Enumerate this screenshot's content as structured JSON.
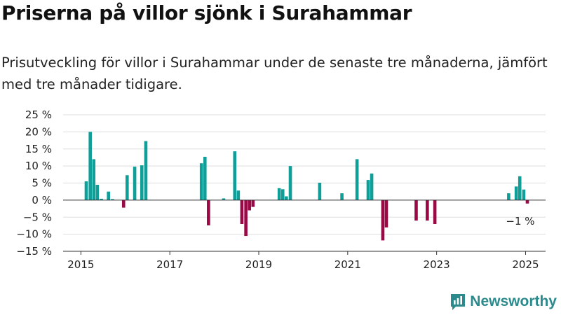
{
  "header": {
    "title": "Priserna på villor sjönk i Surahammar",
    "subtitle": "Prisutveckling för villor i Surahammar under de senaste tre månaderna, jämfört med tre månader tidigare."
  },
  "branding": {
    "name": "Newsworthy",
    "icon": "newsworthy-logo-icon"
  },
  "colors": {
    "positive": "#0f9e98",
    "negative": "#990945",
    "grid": "#dddddd",
    "axis": "#333333"
  },
  "chart_data": {
    "type": "bar",
    "title": "Priserna på villor sjönk i Surahammar",
    "xlabel": "",
    "ylabel": "",
    "xlim": [
      2014.6,
      2025.45
    ],
    "ylim": [
      -15,
      25
    ],
    "grid": true,
    "legend": "none",
    "ytick_values": [
      25,
      20,
      15,
      10,
      5,
      0,
      -5,
      -10,
      -15
    ],
    "ytick_labels": [
      "25 %",
      "20 %",
      "15 %",
      "10 %",
      "5 %",
      "0 %",
      "−5 %",
      "−10 %",
      "−15 %"
    ],
    "xtick_values": [
      2015,
      2017,
      2019,
      2021,
      2023,
      2025
    ],
    "xtick_labels": [
      "2015",
      "2017",
      "2019",
      "2021",
      "2023",
      "2025"
    ],
    "annotation": {
      "text": "−1 %",
      "x": 2024.97,
      "y": -1
    },
    "series": [
      {
        "values": [
          {
            "x": 2015.12,
            "y": 5.5
          },
          {
            "x": 2015.21,
            "y": 20
          },
          {
            "x": 2015.29,
            "y": 12
          },
          {
            "x": 2015.37,
            "y": 4.5
          },
          {
            "x": 2015.46,
            "y": 0.4
          },
          {
            "x": 2015.62,
            "y": 2.5
          },
          {
            "x": 2015.71,
            "y": 0.3
          },
          {
            "x": 2015.96,
            "y": -2.2
          },
          {
            "x": 2016.04,
            "y": 7.3
          },
          {
            "x": 2016.21,
            "y": 9.8
          },
          {
            "x": 2016.37,
            "y": 10.2
          },
          {
            "x": 2016.46,
            "y": 17.3
          },
          {
            "x": 2017.71,
            "y": 10.8
          },
          {
            "x": 2017.79,
            "y": 12.7
          },
          {
            "x": 2017.87,
            "y": -7.4
          },
          {
            "x": 2018.21,
            "y": 0.5
          },
          {
            "x": 2018.46,
            "y": 14.3
          },
          {
            "x": 2018.54,
            "y": 2.8
          },
          {
            "x": 2018.62,
            "y": -7
          },
          {
            "x": 2018.71,
            "y": -10.5
          },
          {
            "x": 2018.79,
            "y": -3
          },
          {
            "x": 2018.87,
            "y": -2
          },
          {
            "x": 2019.46,
            "y": 3.5
          },
          {
            "x": 2019.54,
            "y": 3.2
          },
          {
            "x": 2019.62,
            "y": 1.1
          },
          {
            "x": 2019.71,
            "y": 10
          },
          {
            "x": 2020.37,
            "y": 5.1
          },
          {
            "x": 2020.87,
            "y": 2
          },
          {
            "x": 2021.21,
            "y": 12
          },
          {
            "x": 2021.46,
            "y": 5.9
          },
          {
            "x": 2021.54,
            "y": 7.8
          },
          {
            "x": 2021.79,
            "y": -11.8
          },
          {
            "x": 2021.87,
            "y": -8
          },
          {
            "x": 2022.54,
            "y": -6
          },
          {
            "x": 2022.79,
            "y": -6
          },
          {
            "x": 2022.96,
            "y": -7
          },
          {
            "x": 2024.62,
            "y": 2
          },
          {
            "x": 2024.79,
            "y": 4
          },
          {
            "x": 2024.87,
            "y": 7
          },
          {
            "x": 2024.96,
            "y": 3.1
          },
          {
            "x": 2025.04,
            "y": -1
          }
        ]
      }
    ]
  }
}
